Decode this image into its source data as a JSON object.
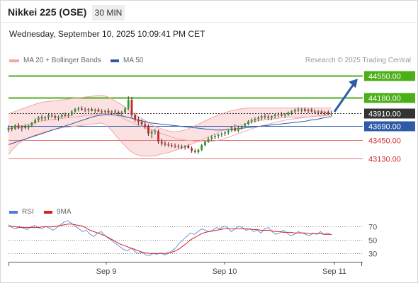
{
  "header": {
    "title": "Nikkei 225 (OSE)",
    "timeframe": "30 MIN",
    "datetime": "Wednesday, September 10, 2025 10:09:41 PM CET"
  },
  "legend": {
    "bollinger": "MA 20 + Bollinger Bands",
    "ma50": "MA 50",
    "credit": "Research © 2025 Trading Central"
  },
  "rsi_legend": {
    "rsi": "RSI",
    "ma9": "9MA"
  },
  "colors": {
    "resistance": "#4caf1a",
    "support": "#e57373",
    "ma50": "#2e5aa8",
    "bollinger": "#f3a7a7",
    "band_fill": "#fbe1e1",
    "up": "#2f9d2f",
    "down": "#c62828",
    "rsi": "#4c7bd9",
    "rsi_ma": "#d62020",
    "current": "#333333"
  },
  "chart_data": [
    {
      "type": "candlestick",
      "title": "Nikkei 225 (OSE)",
      "xlabel": "",
      "ylabel": "",
      "x_ticks": [
        "Sep 9",
        "Sep 10",
        "Sep 11"
      ],
      "ylim": [
        42450,
        44700
      ],
      "grid": false,
      "legend_position": "top-left",
      "levels": [
        {
          "label": "44550.00",
          "value": 44550,
          "kind": "resistance"
        },
        {
          "label": "44180.00",
          "value": 44180,
          "kind": "resistance"
        },
        {
          "label": "43910.00",
          "value": 43910,
          "kind": "current"
        },
        {
          "label": "43690.00",
          "value": 43690,
          "kind": "pivot"
        },
        {
          "label": "43450.00",
          "value": 43450,
          "kind": "support"
        },
        {
          "label": "43130.00",
          "value": 43130,
          "kind": "support"
        }
      ],
      "forecast_target": 44550,
      "candles": [
        [
          43620,
          43700,
          43580,
          43660
        ],
        [
          43660,
          43690,
          43600,
          43640
        ],
        [
          43640,
          43720,
          43620,
          43700
        ],
        [
          43700,
          43740,
          43630,
          43650
        ],
        [
          43650,
          43700,
          43600,
          43680
        ],
        [
          43680,
          43720,
          43630,
          43660
        ],
        [
          43660,
          43710,
          43620,
          43700
        ],
        [
          43700,
          43760,
          43670,
          43740
        ],
        [
          43740,
          43820,
          43720,
          43790
        ],
        [
          43790,
          43860,
          43760,
          43840
        ],
        [
          43840,
          43880,
          43780,
          43820
        ],
        [
          43820,
          43860,
          43780,
          43840
        ],
        [
          43840,
          43900,
          43800,
          43870
        ],
        [
          43870,
          43910,
          43830,
          43860
        ],
        [
          43860,
          43890,
          43800,
          43830
        ],
        [
          43830,
          43870,
          43780,
          43850
        ],
        [
          43850,
          43900,
          43820,
          43880
        ],
        [
          43880,
          43920,
          43840,
          43860
        ],
        [
          43860,
          43900,
          43830,
          43880
        ],
        [
          43880,
          43960,
          43860,
          43940
        ],
        [
          43940,
          44000,
          43920,
          43980
        ],
        [
          43980,
          44020,
          43940,
          43990
        ],
        [
          43990,
          44030,
          43950,
          43970
        ],
        [
          43970,
          44010,
          43930,
          43960
        ],
        [
          43960,
          44000,
          43920,
          43980
        ],
        [
          43980,
          44010,
          43940,
          43950
        ],
        [
          43950,
          43990,
          43910,
          43970
        ],
        [
          43970,
          44000,
          43930,
          43940
        ],
        [
          43940,
          43980,
          43900,
          43930
        ],
        [
          43930,
          43970,
          43890,
          43950
        ],
        [
          43950,
          43990,
          43910,
          43920
        ],
        [
          43920,
          43960,
          43880,
          43940
        ],
        [
          43940,
          43980,
          43900,
          43930
        ],
        [
          43930,
          43960,
          43880,
          43900
        ],
        [
          43900,
          43950,
          43870,
          43920
        ],
        [
          43920,
          44020,
          43900,
          43990
        ],
        [
          43990,
          44200,
          43960,
          44140
        ],
        [
          44140,
          44190,
          43840,
          43880
        ],
        [
          43880,
          43920,
          43760,
          43800
        ],
        [
          43800,
          43850,
          43700,
          43760
        ],
        [
          43760,
          43800,
          43680,
          43720
        ],
        [
          43720,
          43760,
          43640,
          43680
        ],
        [
          43680,
          43720,
          43520,
          43560
        ],
        [
          43560,
          43620,
          43480,
          43590
        ],
        [
          43590,
          43640,
          43540,
          43600
        ],
        [
          43600,
          43630,
          43380,
          43420
        ],
        [
          43420,
          43470,
          43350,
          43390
        ],
        [
          43390,
          43430,
          43340,
          43370
        ],
        [
          43370,
          43410,
          43330,
          43360
        ],
        [
          43360,
          43400,
          43320,
          43350
        ],
        [
          43350,
          43390,
          43310,
          43340
        ],
        [
          43340,
          43380,
          43300,
          43330
        ],
        [
          43330,
          43370,
          43290,
          43320
        ],
        [
          43320,
          43360,
          43280,
          43350
        ],
        [
          43350,
          43380,
          43300,
          43310
        ],
        [
          43310,
          43340,
          43230,
          43260
        ],
        [
          43260,
          43300,
          43220,
          43240
        ],
        [
          43240,
          43300,
          43210,
          43280
        ],
        [
          43280,
          43380,
          43260,
          43360
        ],
        [
          43360,
          43440,
          43340,
          43420
        ],
        [
          43420,
          43500,
          43400,
          43470
        ],
        [
          43470,
          43530,
          43440,
          43500
        ],
        [
          43500,
          43550,
          43460,
          43520
        ],
        [
          43520,
          43560,
          43480,
          43540
        ],
        [
          43540,
          43580,
          43500,
          43560
        ],
        [
          43560,
          43600,
          43520,
          43580
        ],
        [
          43580,
          43630,
          43540,
          43610
        ],
        [
          43610,
          43680,
          43590,
          43660
        ],
        [
          43660,
          43720,
          43590,
          43610
        ],
        [
          43610,
          43680,
          43580,
          43660
        ],
        [
          43660,
          43700,
          43620,
          43680
        ],
        [
          43680,
          43740,
          43650,
          43720
        ],
        [
          43720,
          43790,
          43700,
          43770
        ],
        [
          43770,
          43820,
          43730,
          43790
        ],
        [
          43790,
          43840,
          43750,
          43810
        ],
        [
          43810,
          43860,
          43770,
          43830
        ],
        [
          43830,
          43880,
          43790,
          43860
        ],
        [
          43860,
          43900,
          43810,
          43850
        ],
        [
          43850,
          43890,
          43790,
          43830
        ],
        [
          43830,
          43870,
          43790,
          43860
        ],
        [
          43860,
          43900,
          43820,
          43880
        ],
        [
          43880,
          43920,
          43840,
          43890
        ],
        [
          43890,
          43930,
          43850,
          43870
        ],
        [
          43870,
          43910,
          43830,
          43890
        ],
        [
          43890,
          43940,
          43860,
          43920
        ],
        [
          43920,
          43960,
          43880,
          43940
        ],
        [
          43940,
          43990,
          43910,
          43970
        ],
        [
          43970,
          44010,
          43930,
          43960
        ],
        [
          43960,
          44000,
          43920,
          43980
        ],
        [
          43980,
          44010,
          43930,
          43950
        ],
        [
          43950,
          43990,
          43910,
          43970
        ],
        [
          43970,
          44000,
          43920,
          43940
        ],
        [
          43940,
          43980,
          43900,
          43920
        ],
        [
          43920,
          43960,
          43880,
          43940
        ],
        [
          43940,
          43970,
          43890,
          43910
        ],
        [
          43910,
          43950,
          43870,
          43930
        ],
        [
          43930,
          43960,
          43880,
          43900
        ],
        [
          43900,
          43950,
          43860,
          43910
        ]
      ],
      "ma20": [
        43640,
        43660,
        43680,
        43700,
        43720,
        43740,
        43760,
        43780,
        43790,
        43800,
        43810,
        43820,
        43830,
        43840,
        43850,
        43860,
        43870,
        43880,
        43890,
        43900,
        43900,
        43890,
        43870,
        43840,
        43800,
        43760,
        43720,
        43690,
        43660,
        43630,
        43600,
        43570,
        43540,
        43510,
        43480,
        43460,
        43450,
        43440,
        43430,
        43420,
        43420,
        43420,
        43430,
        43450,
        43470,
        43500,
        43530,
        43560,
        43590,
        43620,
        43650,
        43680,
        43700,
        43720,
        43740,
        43760,
        43780,
        43800,
        43810,
        43820,
        43830,
        43840,
        43850,
        43860,
        43870,
        43880,
        43890
      ],
      "bb_upper": [
        43900,
        43930,
        43960,
        43990,
        44020,
        44050,
        44080,
        44100,
        44110,
        44120,
        44130,
        44140,
        44150,
        44160,
        44170,
        44180,
        44190,
        44200,
        44210,
        44220,
        44200,
        44160,
        44110,
        44060,
        44000,
        43940,
        43880,
        43830,
        43780,
        43730,
        43680,
        43650,
        43620,
        43600,
        43590,
        43600,
        43620,
        43650,
        43690,
        43730,
        43770,
        43810,
        43850,
        43880,
        43910,
        43940,
        43960,
        43980,
        43990,
        44000,
        44000,
        44000,
        44000,
        44000,
        44000,
        44000,
        44000,
        44000,
        44000,
        44000,
        44000,
        44000,
        44000,
        44000,
        44000,
        44000,
        44000
      ],
      "bb_lower": [
        43200,
        43300,
        43380,
        43440,
        43480,
        43520,
        43550,
        43580,
        43600,
        43620,
        43640,
        43660,
        43670,
        43680,
        43690,
        43700,
        43710,
        43720,
        43730,
        43740,
        43700,
        43620,
        43520,
        43420,
        43330,
        43250,
        43200,
        43180,
        43170,
        43170,
        43180,
        43200,
        43220,
        43240,
        43270,
        43300,
        43330,
        43360,
        43400,
        43430,
        43470,
        43500,
        43540,
        43580,
        43620,
        43650,
        43680,
        43700,
        43720,
        43740,
        43760,
        43780,
        43790,
        43800,
        43810,
        43820,
        43830,
        43840,
        43840,
        43840,
        43840,
        43840,
        43850,
        43860,
        43860,
        43870,
        43880
      ],
      "ma50": [
        43370,
        43400,
        43430,
        43460,
        43490,
        43520,
        43550,
        43580,
        43610,
        43640,
        43670,
        43700,
        43730,
        43760,
        43790,
        43820,
        43850,
        43870,
        43880,
        43885,
        43880,
        43870,
        43850,
        43830,
        43800,
        43780,
        43760,
        43740,
        43730,
        43720,
        43710,
        43700,
        43690,
        43680,
        43670,
        43660,
        43650,
        43640,
        43630,
        43620,
        43620,
        43620,
        43630,
        43640,
        43650,
        43660,
        43670,
        43680,
        43690,
        43700,
        43710,
        43720,
        43730,
        43740,
        43750,
        43760,
        43770,
        43790,
        43800,
        43820,
        43840,
        43850
      ]
    },
    {
      "type": "line",
      "title": "",
      "xlabel": "",
      "ylabel": "",
      "ylim": [
        20,
        80
      ],
      "y_ticks": [
        "70",
        "50",
        "30"
      ],
      "reference_lines": [
        70,
        50,
        30
      ],
      "series": [
        {
          "name": "RSI",
          "values": [
            72,
            68,
            66,
            70,
            67,
            65,
            69,
            71,
            68,
            66,
            70,
            67,
            64,
            68,
            72,
            76,
            78,
            74,
            70,
            66,
            62,
            64,
            58,
            55,
            60,
            62,
            56,
            52,
            48,
            44,
            40,
            36,
            34,
            38,
            33,
            30,
            32,
            28,
            27,
            30,
            29,
            31,
            28,
            30,
            34,
            38,
            45,
            50,
            55,
            60,
            58,
            62,
            66,
            64,
            62,
            64,
            68,
            66,
            70,
            68,
            62,
            66,
            70,
            68,
            64,
            66,
            62,
            64,
            60,
            66,
            68,
            62,
            58,
            60,
            64,
            60,
            56,
            58,
            62,
            60,
            58,
            56,
            60,
            58,
            62,
            58,
            60,
            57
          ]
        },
        {
          "name": "9MA",
          "values": [
            70,
            70,
            69,
            68,
            68,
            68,
            68,
            68,
            68,
            69,
            69,
            69,
            69,
            70,
            71,
            72,
            73,
            73,
            72,
            71,
            70,
            67,
            64,
            62,
            60,
            58,
            56,
            53,
            50,
            47,
            44,
            42,
            40,
            38,
            36,
            34,
            32,
            31,
            30,
            30,
            30,
            30,
            30,
            31,
            32,
            34,
            37,
            41,
            45,
            50,
            53,
            56,
            59,
            61,
            62,
            63,
            64,
            65,
            66,
            66,
            66,
            66,
            66,
            66,
            66,
            66,
            65,
            65,
            64,
            64,
            64,
            63,
            62,
            62,
            61,
            61,
            61,
            60,
            60,
            60,
            60,
            59,
            59,
            59,
            59,
            58,
            58,
            58
          ]
        }
      ]
    }
  ]
}
